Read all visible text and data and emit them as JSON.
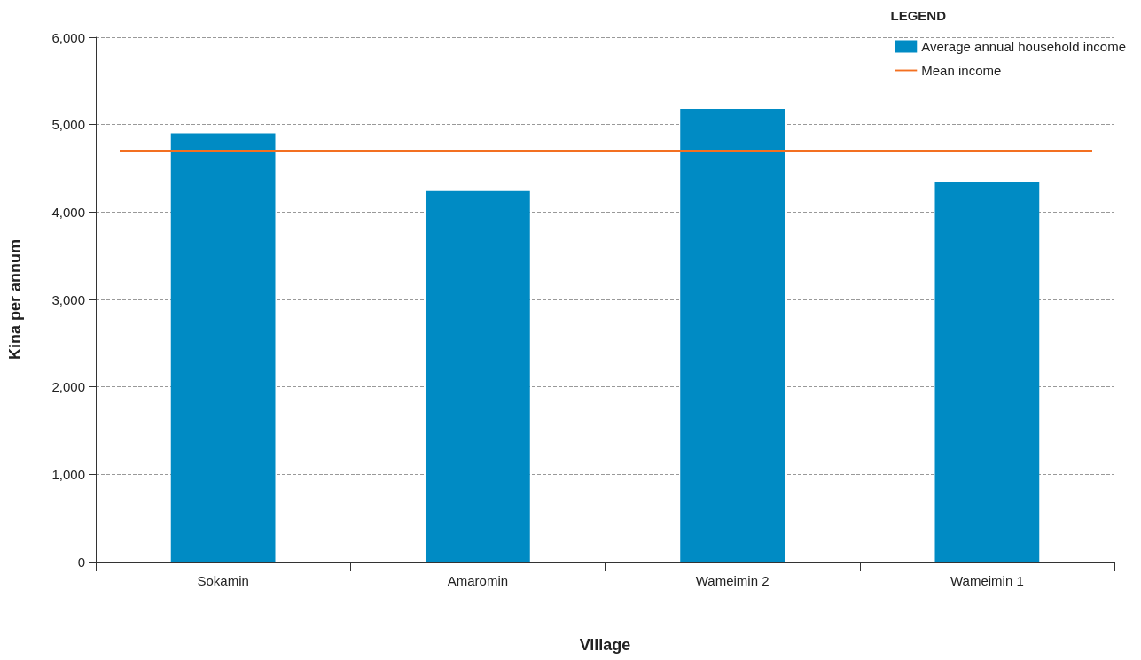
{
  "chart_data": {
    "type": "bar",
    "xlabel": "Village",
    "ylabel": "Kina per annum",
    "legend_title": "LEGEND",
    "categories": [
      "Sokamin",
      "Amaromin",
      "Wameimin 2",
      "Wameimin 1"
    ],
    "series": [
      {
        "name": "Average annual household income",
        "color": "#008bc4",
        "values": [
          4900,
          4240,
          5180,
          4340
        ]
      }
    ],
    "ref_lines": [
      {
        "axis": "y",
        "value": 4700,
        "label": "Mean income",
        "color": "#f37021"
      }
    ],
    "ylim": [
      0,
      6000
    ],
    "yticks": [
      0,
      {
        "value": 1000,
        "label": "1,000"
      },
      {
        "value": 2000,
        "label": "2,000"
      },
      {
        "value": 3000,
        "label": "3,000"
      },
      {
        "value": 4000,
        "label": "4,000"
      },
      {
        "value": 5000,
        "label": "5,000"
      },
      {
        "value": 6000,
        "label": "6,000"
      }
    ],
    "grid": "y",
    "legend": "top right"
  }
}
